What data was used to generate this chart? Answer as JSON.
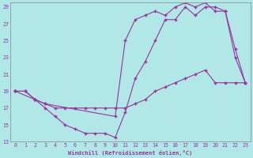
{
  "xlabel": "Windchill (Refroidissement éolien,°C)",
  "bg_color": "#b0e8e8",
  "line_color": "#993399",
  "grid_color": "#ccecec",
  "xlim": [
    -0.5,
    23.5
  ],
  "ylim": [
    13,
    29.5
  ],
  "yticks": [
    13,
    15,
    17,
    19,
    21,
    23,
    25,
    27,
    29
  ],
  "xticks": [
    0,
    1,
    2,
    3,
    4,
    5,
    6,
    7,
    8,
    9,
    10,
    11,
    12,
    13,
    14,
    15,
    16,
    17,
    18,
    19,
    20,
    21,
    22,
    23
  ],
  "line1_x": [
    0,
    1,
    2,
    3,
    4,
    5,
    6,
    7,
    8,
    9,
    10,
    11,
    12,
    13,
    14,
    15,
    16,
    17,
    18,
    19,
    20,
    21,
    22,
    23
  ],
  "line1_y": [
    19,
    19,
    18,
    17.5,
    17,
    17,
    17,
    17,
    17,
    17,
    17,
    17,
    17.5,
    18,
    19,
    19.5,
    20,
    20.5,
    21,
    21.5,
    20,
    20,
    20,
    20
  ],
  "line2_x": [
    0,
    1,
    2,
    3,
    4,
    5,
    6,
    7,
    8,
    9,
    10,
    11,
    12,
    13,
    14,
    15,
    16,
    17,
    18,
    19,
    20,
    21,
    22,
    23
  ],
  "line2_y": [
    19,
    19,
    18,
    17,
    16,
    15,
    14.5,
    14,
    14,
    14,
    13.5,
    16.5,
    20.5,
    22.5,
    25,
    27.5,
    27.5,
    29,
    28,
    29,
    29,
    28.5,
    23,
    20
  ],
  "line3_x": [
    0,
    2,
    3,
    10,
    11,
    12,
    13,
    14,
    15,
    16,
    17,
    18,
    19,
    20,
    21,
    22,
    23
  ],
  "line3_y": [
    19,
    18,
    17.5,
    16,
    25,
    27.5,
    28,
    28.5,
    28,
    29,
    29.5,
    29,
    29.5,
    28.5,
    28.5,
    24,
    20
  ]
}
